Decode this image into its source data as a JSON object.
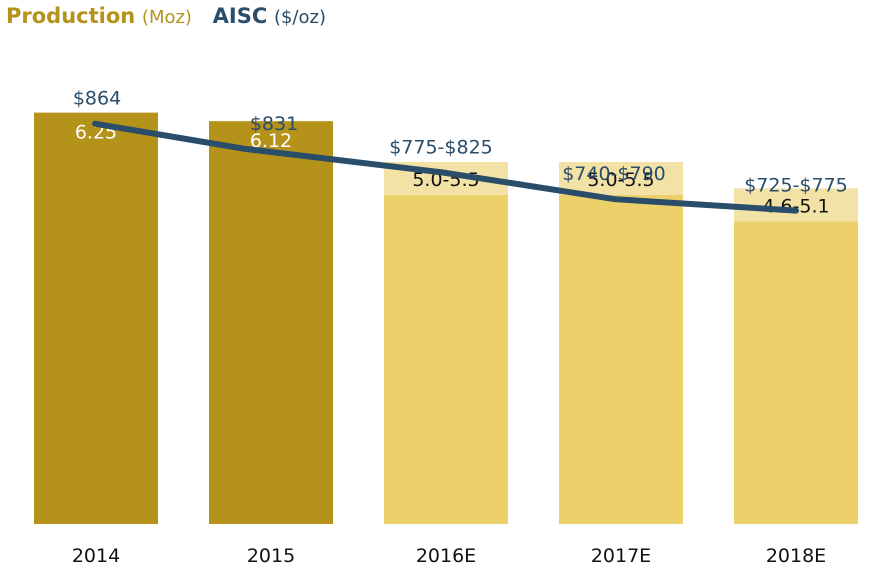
{
  "legend": {
    "production_label": "Production",
    "production_unit": "(Moz)",
    "aisc_label": "AISC",
    "aisc_unit": "($/oz)"
  },
  "colors": {
    "actual": "#b5921a",
    "estimate": "#ecd06a",
    "estimate_range": "#f3e2a6",
    "aisc_line": "#2a4d6a"
  },
  "chart_data": {
    "type": "bar",
    "categories": [
      "2014",
      "2015",
      "2016E",
      "2017E",
      "2018E"
    ],
    "ylim": [
      0,
      6.7
    ],
    "series": [
      {
        "name": "Production",
        "values": [
          6.25,
          6.12,
          5.25,
          5.25,
          4.85
        ],
        "low": [
          6.25,
          6.12,
          5.0,
          5.0,
          4.6
        ],
        "high": [
          6.25,
          6.12,
          5.5,
          5.5,
          5.1
        ],
        "labels": [
          "6.25",
          "6.12",
          "5.0-5.5",
          "5.0-5.5",
          "4.6-5.1"
        ],
        "estimate": [
          false,
          false,
          true,
          true,
          true
        ]
      },
      {
        "name": "AISC",
        "type": "line",
        "values": [
          864,
          831,
          800,
          765,
          750
        ],
        "labels": [
          "$864",
          "$831",
          "$775-$825",
          "$740-$790",
          "$725-$775"
        ]
      }
    ],
    "aisc_ylim": [
      680,
      1000
    ]
  }
}
